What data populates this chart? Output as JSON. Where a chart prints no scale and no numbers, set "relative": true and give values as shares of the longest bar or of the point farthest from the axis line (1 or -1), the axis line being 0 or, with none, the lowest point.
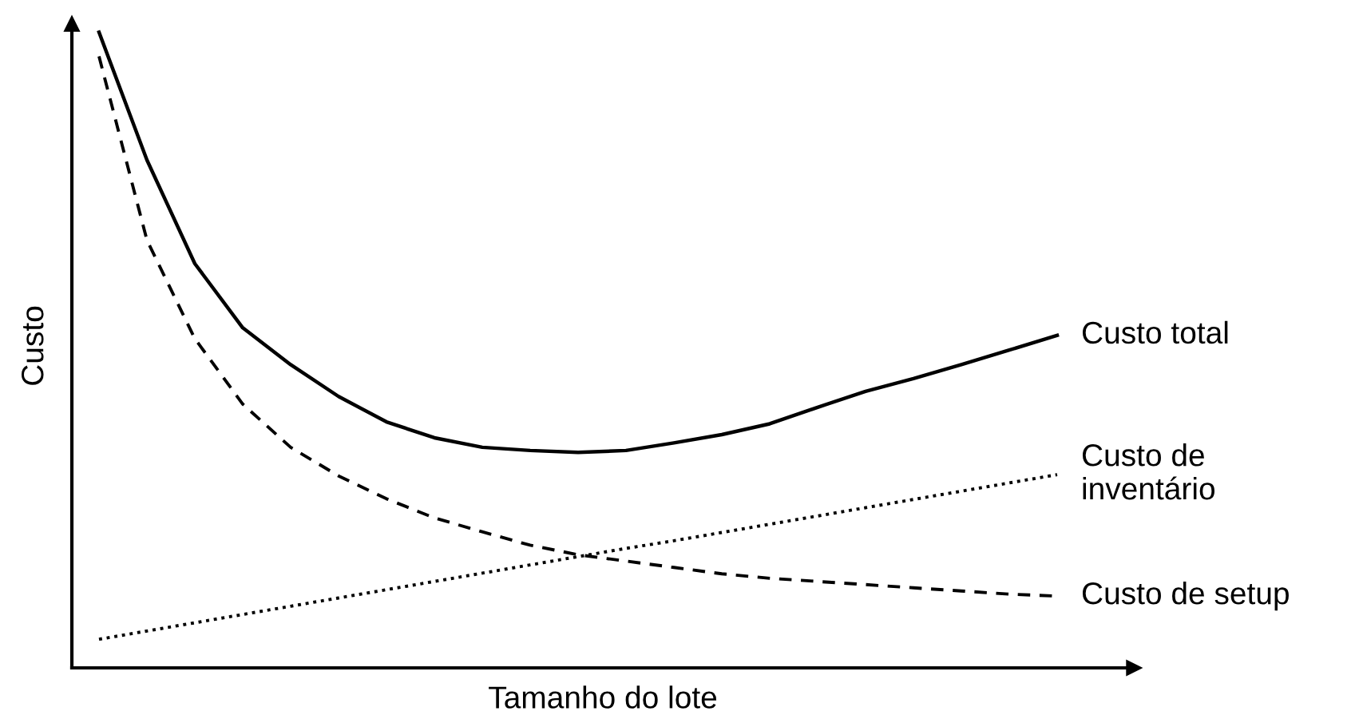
{
  "chart_data": {
    "type": "line",
    "relative": true,
    "xlabel": "Tamanho do lote",
    "ylabel": "Custo",
    "tick_labels": false,
    "legend": false,
    "grid": false,
    "marker": "none",
    "categories": [
      null,
      null,
      null,
      null,
      null,
      null,
      null,
      null,
      null,
      null,
      null,
      null,
      null,
      null,
      null,
      null,
      null,
      null,
      null,
      null,
      null
    ],
    "series": [
      {
        "name": "Custo total",
        "color": "#000000",
        "line_style": "solid",
        "values": [
          1.0,
          0.799,
          0.636,
          0.535,
          0.477,
          0.427,
          0.387,
          0.362,
          0.347,
          0.342,
          0.339,
          0.342,
          0.354,
          0.367,
          0.384,
          0.41,
          0.435,
          0.455,
          0.477,
          0.5,
          0.523
        ]
      },
      {
        "name": "Custo de\ninventário",
        "color": "#000000",
        "line_style": "dotted",
        "values": [
          0.045,
          0.058,
          0.071,
          0.084,
          0.097,
          0.11,
          0.123,
          0.136,
          0.149,
          0.162,
          0.175,
          0.188,
          0.2,
          0.213,
          0.226,
          0.239,
          0.252,
          0.265,
          0.278,
          0.291,
          0.304
        ]
      },
      {
        "name": "Custo de setup",
        "color": "#000000",
        "line_style": "dashed",
        "values": [
          0.962,
          0.673,
          0.518,
          0.415,
          0.347,
          0.302,
          0.266,
          0.236,
          0.214,
          0.193,
          0.178,
          0.168,
          0.158,
          0.148,
          0.141,
          0.136,
          0.131,
          0.126,
          0.121,
          0.116,
          0.113
        ]
      }
    ]
  }
}
